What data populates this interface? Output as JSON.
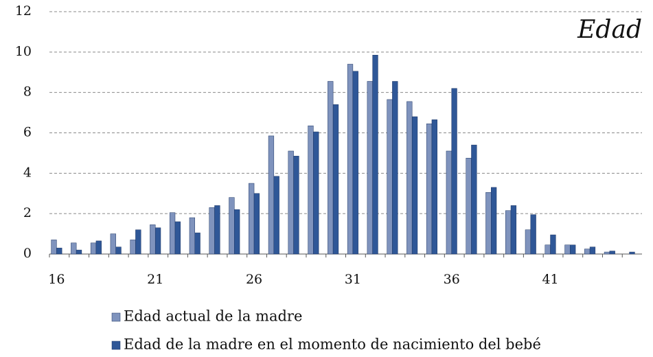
{
  "chart_data": {
    "type": "bar",
    "title": "Edad",
    "categories": [
      "16",
      null,
      null,
      null,
      null,
      "21",
      null,
      null,
      null,
      null,
      "26",
      null,
      null,
      null,
      null,
      "31",
      null,
      null,
      null,
      null,
      "36",
      null,
      null,
      null,
      null,
      "41",
      null,
      null,
      null,
      null
    ],
    "series": [
      {
        "name": "Edad actual de la madre",
        "color": "#7f93bd",
        "values": [
          0.7,
          0.55,
          0.55,
          1.0,
          0.7,
          1.45,
          2.05,
          1.8,
          2.3,
          2.8,
          3.5,
          5.85,
          5.1,
          6.35,
          8.55,
          9.4,
          8.55,
          7.65,
          7.55,
          6.45,
          5.1,
          4.75,
          3.05,
          2.15,
          1.2,
          0.45,
          0.45,
          0.25,
          0.1,
          0
        ]
      },
      {
        "name": "Edad de la madre en el momento de nacimiento del bebé",
        "color": "#2f5797",
        "values": [
          0.3,
          0.2,
          0.65,
          0.35,
          1.2,
          1.3,
          1.6,
          1.05,
          2.4,
          2.2,
          3.0,
          3.85,
          4.85,
          6.05,
          7.4,
          9.05,
          9.85,
          8.55,
          6.8,
          6.65,
          8.2,
          5.4,
          3.3,
          2.4,
          1.95,
          0.95,
          0.45,
          0.35,
          0.15,
          0.1
        ]
      }
    ],
    "ylim": [
      0,
      12
    ],
    "yticks": [
      0,
      2,
      4,
      6,
      8,
      10,
      12
    ],
    "grid": true
  }
}
